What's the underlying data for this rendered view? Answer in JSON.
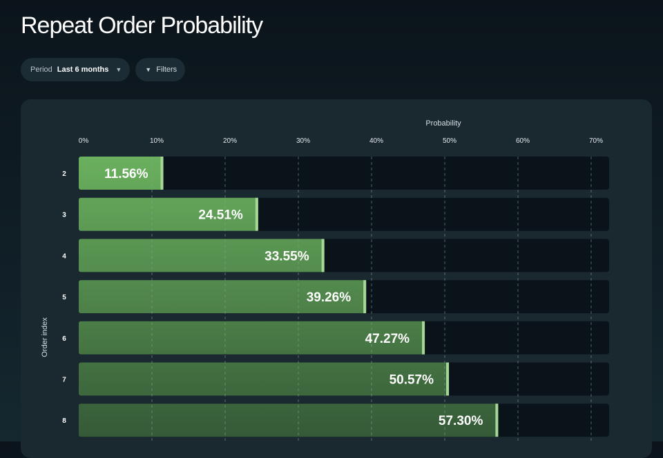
{
  "page": {
    "title": "Repeat Order Probability"
  },
  "controls": {
    "period_label": "Period",
    "period_value": "Last 6 months",
    "filters_label": "Filters"
  },
  "colors": {
    "track": "#0b131a",
    "bar_light": "#6ab05e",
    "bar_dark": "#355a37",
    "bar_edge": "#a6d796"
  },
  "icons": {
    "period_dropdown": "chevron-down-icon",
    "filters": "funnel-icon"
  },
  "chart_data": {
    "type": "bar",
    "orientation": "horizontal",
    "xlabel": "Probability",
    "ylabel": "Order index",
    "xlim": [
      0,
      72.5
    ],
    "xticks": [
      0,
      10,
      20,
      30,
      40,
      50,
      60,
      70
    ],
    "xtick_labels": [
      "0%",
      "10%",
      "20%",
      "30%",
      "40%",
      "50%",
      "60%",
      "70%"
    ],
    "grid": true,
    "categories": [
      "2",
      "3",
      "4",
      "5",
      "6",
      "7",
      "8"
    ],
    "values": [
      11.56,
      24.51,
      33.55,
      39.26,
      47.27,
      50.57,
      57.3
    ],
    "value_labels": [
      "11.56%",
      "24.51%",
      "33.55%",
      "39.26%",
      "47.27%",
      "50.57%",
      "57.30%"
    ]
  }
}
